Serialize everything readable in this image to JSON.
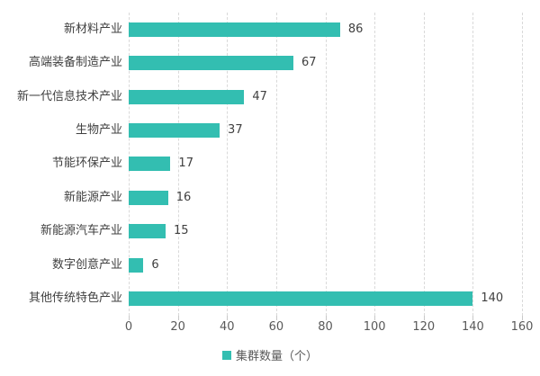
{
  "chart_data": {
    "type": "bar",
    "orientation": "horizontal",
    "categories": [
      "新材料产业",
      "高端装备制造产业",
      "新一代信息技术产业",
      "生物产业",
      "节能环保产业",
      "新能源产业",
      "新能源汽车产业",
      "数字创意产业",
      "其他传统特色产业"
    ],
    "values": [
      86,
      67,
      47,
      37,
      17,
      16,
      15,
      6,
      140
    ],
    "series_name": "集群数量（个）",
    "legend_label": "集群数量（个）",
    "x_ticks": [
      0,
      20,
      40,
      60,
      80,
      100,
      120,
      140,
      160
    ],
    "xlim": [
      0,
      160
    ],
    "title": "",
    "xlabel": "",
    "ylabel": "",
    "grid": true,
    "legend_position": "bottom",
    "bar_color": "#33beb1",
    "grid_color": "#d9d9d9",
    "label_color": "#404040",
    "tick_color": "#595959"
  }
}
